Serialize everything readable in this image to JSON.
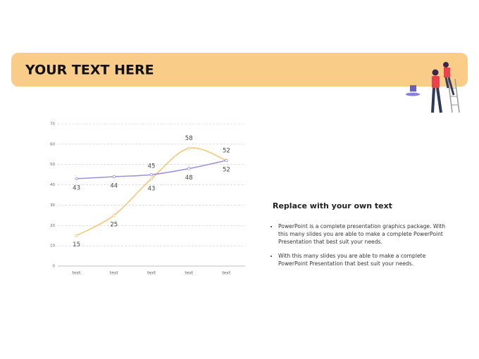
{
  "header": {
    "title": "YOUR TEXT HERE"
  },
  "chart_data": {
    "type": "line",
    "categories": [
      "text",
      "text",
      "text",
      "text",
      "text"
    ],
    "series": [
      {
        "color": "#f7c36e",
        "values": [
          15,
          25,
          43,
          58,
          52
        ]
      },
      {
        "color": "#9d8fe0",
        "values": [
          43,
          44,
          45,
          48,
          52
        ]
      }
    ],
    "ylim": [
      0,
      70
    ],
    "yticks": [
      0,
      10,
      20,
      30,
      40,
      50,
      60,
      70
    ],
    "grid": true
  },
  "text_block": {
    "heading": "Replace with your own text",
    "bullets": [
      "PowerPoint is a complete presentation graphics package. With this many slides you are able to make a complete PowerPoint Presentation that best suit your needs.",
      "With this many slides you are able to make a complete PowerPoint Presentation that best suit your needs."
    ]
  }
}
